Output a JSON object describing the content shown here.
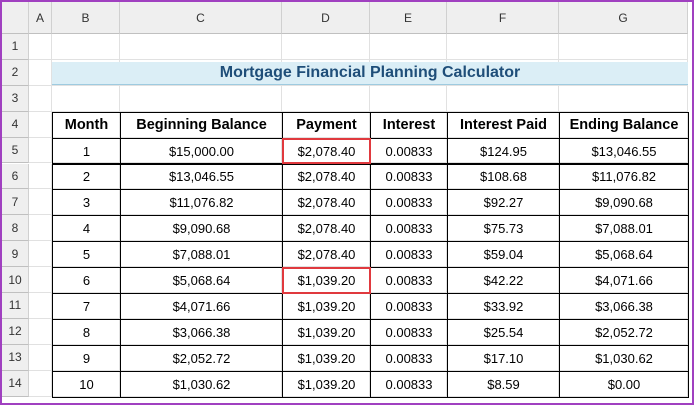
{
  "columns": [
    "A",
    "B",
    "C",
    "D",
    "E",
    "F",
    "G"
  ],
  "rows": [
    "1",
    "2",
    "3",
    "4",
    "5",
    "6",
    "7",
    "8",
    "9",
    "10",
    "11",
    "12",
    "13",
    "14"
  ],
  "title": "Mortgage Financial Planning Calculator",
  "table": {
    "headers": [
      "Month",
      "Beginning Balance",
      "Payment",
      "Interest",
      "Interest Paid",
      "Ending Balance"
    ],
    "rows": [
      [
        "1",
        "$15,000.00",
        "$2,078.40",
        "0.00833",
        "$124.95",
        "$13,046.55"
      ],
      [
        "2",
        "$13,046.55",
        "$2,078.40",
        "0.00833",
        "$108.68",
        "$11,076.82"
      ],
      [
        "3",
        "$11,076.82",
        "$2,078.40",
        "0.00833",
        "$92.27",
        "$9,090.68"
      ],
      [
        "4",
        "$9,090.68",
        "$2,078.40",
        "0.00833",
        "$75.73",
        "$7,088.01"
      ],
      [
        "5",
        "$7,088.01",
        "$2,078.40",
        "0.00833",
        "$59.04",
        "$5,068.64"
      ],
      [
        "6",
        "$5,068.64",
        "$1,039.20",
        "0.00833",
        "$42.22",
        "$4,071.66"
      ],
      [
        "7",
        "$4,071.66",
        "$1,039.20",
        "0.00833",
        "$33.92",
        "$3,066.38"
      ],
      [
        "8",
        "$3,066.38",
        "$1,039.20",
        "0.00833",
        "$25.54",
        "$2,052.72"
      ],
      [
        "9",
        "$2,052.72",
        "$1,039.20",
        "0.00833",
        "$17.10",
        "$1,030.62"
      ],
      [
        "10",
        "$1,030.62",
        "$1,039.20",
        "0.00833",
        "$8.59",
        "$0.00"
      ]
    ]
  }
}
